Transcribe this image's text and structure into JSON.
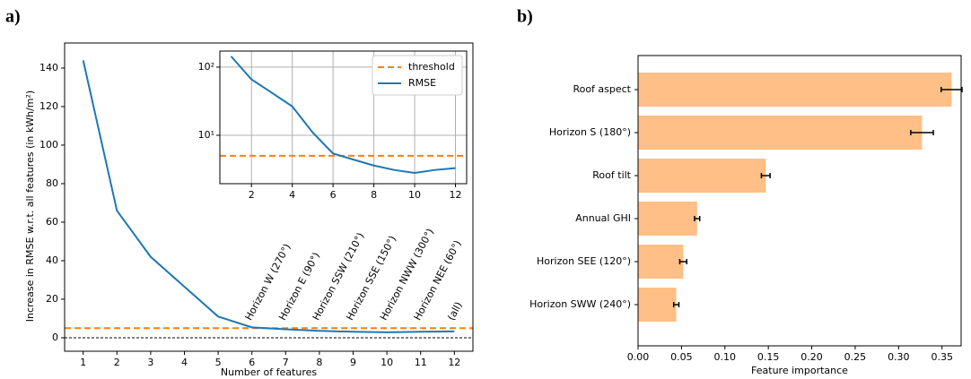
{
  "chart_data": [
    {
      "type": "line",
      "panel_label": "a)",
      "x": [
        1,
        2,
        3,
        4,
        5,
        6,
        7,
        8,
        9,
        10,
        11,
        12
      ],
      "series": [
        {
          "name": "RMSE",
          "color": "#1f77b4",
          "values": [
            144,
            66,
            42,
            26.5,
            11,
            5.4,
            4.4,
            3.6,
            3.1,
            2.8,
            3.1,
            3.3
          ]
        }
      ],
      "threshold": {
        "name": "threshold",
        "value": 5,
        "color": "#ff7f0e"
      },
      "baseline": 0,
      "xlim": [
        0.45,
        12.55
      ],
      "xticks": [
        1,
        2,
        3,
        4,
        5,
        6,
        7,
        8,
        9,
        10,
        11,
        12
      ],
      "ylim": [
        -7,
        153
      ],
      "yticks": [
        0,
        20,
        40,
        60,
        80,
        100,
        120,
        140
      ],
      "xlabel": "Number of features",
      "ylabel": "Increase in RMSE w.r.t. all features (in kWh/m²)",
      "annotations": [
        {
          "text": "Horizon W (270°)",
          "x": 6
        },
        {
          "text": "Horizon E (90°)",
          "x": 7
        },
        {
          "text": "Horizon SSW (210°)",
          "x": 8
        },
        {
          "text": "Horizon SSE (150°)",
          "x": 9
        },
        {
          "text": "Horizon NWW (300°)",
          "x": 10
        },
        {
          "text": "Horizon NEE (60°)",
          "x": 11
        },
        {
          "text": "(all)",
          "x": 12
        }
      ],
      "inset": {
        "log_y": true,
        "grid": true,
        "legend": "upper right",
        "xlim": [
          0.45,
          12.55
        ],
        "xticks": [
          2,
          4,
          6,
          8,
          10,
          12
        ],
        "ylim": [
          1.95,
          172
        ],
        "yticks": [
          {
            "value": 10,
            "label": "10¹"
          },
          {
            "value": 100,
            "label": "10²"
          }
        ]
      }
    },
    {
      "type": "barh",
      "panel_label": "b)",
      "categories": [
        "Roof aspect",
        "Horizon S (180°)",
        "Roof tilt",
        "Annual GHI",
        "Horizon SEE (120°)",
        "Horizon SWW (240°)"
      ],
      "values": [
        0.361,
        0.327,
        0.147,
        0.068,
        0.052,
        0.044
      ],
      "errors": [
        0.012,
        0.013,
        0.005,
        0.003,
        0.004,
        0.003
      ],
      "color": "#ffbf86",
      "xlim": [
        0,
        0.372
      ],
      "xticks": [
        {
          "value": 0,
          "label": "0.00"
        },
        0.05,
        {
          "value": 0.1,
          "label": "0.10"
        },
        0.15,
        {
          "value": 0.2,
          "label": "0.20"
        },
        0.25,
        {
          "value": 0.3,
          "label": "0.30"
        },
        0.35
      ],
      "xlabel": "Feature importance"
    }
  ]
}
